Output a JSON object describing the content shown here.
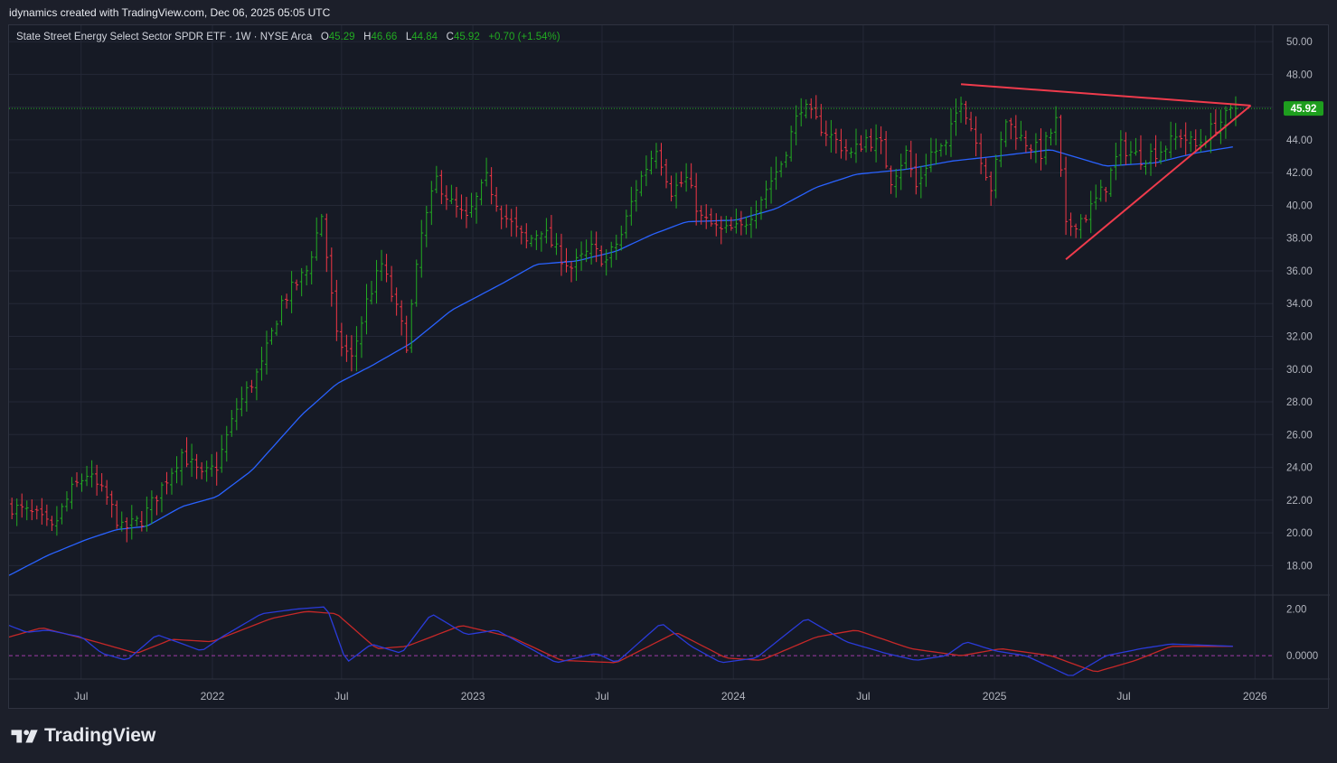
{
  "caption": "idynamics created with TradingView.com, Dec 06, 2025 05:05 UTC",
  "legend": {
    "symbol": "State Street Energy Select Sector SPDR ETF · 1W · NYSE Arca",
    "o_label": "O",
    "o": "45.29",
    "h_label": "H",
    "h": "46.66",
    "l_label": "L",
    "l": "44.84",
    "c_label": "C",
    "c": "45.92",
    "change": "+0.70 (+1.54%)"
  },
  "brand": "TradingView",
  "colors": {
    "up": "#22ab22",
    "down": "#f23645",
    "ma": "#2962ff",
    "trend": "#ef3b4c",
    "osc_fast": "#2a3bd9",
    "osc_slow": "#c62828",
    "price_tag": "#1e9e1e"
  },
  "chart_data": {
    "type": "ohlc",
    "interval": "1W",
    "price_axis": {
      "ylim": [
        16.2,
        51.0
      ],
      "ticks": [
        "50.00",
        "48.00",
        "46.00",
        "44.00",
        "42.00",
        "40.00",
        "38.00",
        "36.00",
        "34.00",
        "32.00",
        "30.00",
        "28.00",
        "26.00",
        "24.00",
        "22.00",
        "20.00",
        "18.00"
      ],
      "last_price": "45.92"
    },
    "indicator_axis": {
      "ylim": [
        -1.0,
        2.6
      ],
      "ticks": [
        "2.00",
        "0.0000"
      ]
    },
    "time_axis": {
      "range": [
        "2021-03-22",
        "2026-01-26"
      ],
      "labels": [
        {
          "text": "Jul",
          "date": "2021-07-01"
        },
        {
          "text": "2022",
          "date": "2022-01-01"
        },
        {
          "text": "Jul",
          "date": "2022-07-01"
        },
        {
          "text": "2023",
          "date": "2023-01-01"
        },
        {
          "text": "Jul",
          "date": "2023-07-01"
        },
        {
          "text": "2024",
          "date": "2024-01-01"
        },
        {
          "text": "Jul",
          "date": "2024-07-01"
        },
        {
          "text": "2025",
          "date": "2025-01-01"
        },
        {
          "text": "Jul",
          "date": "2025-07-01"
        },
        {
          "text": "2026",
          "date": "2026-01-01"
        }
      ]
    },
    "price_keypoints": [
      [
        "2021-03-26",
        21.6
      ],
      [
        "2021-04-30",
        21.0
      ],
      [
        "2021-05-21",
        20.2
      ],
      [
        "2021-06-18",
        22.6
      ],
      [
        "2021-07-09",
        23.6
      ],
      [
        "2021-08-06",
        22.1
      ],
      [
        "2021-08-27",
        20.2
      ],
      [
        "2021-09-24",
        20.8
      ],
      [
        "2021-10-22",
        22.8
      ],
      [
        "2021-11-19",
        24.9
      ],
      [
        "2021-12-17",
        23.4
      ],
      [
        "2022-01-07",
        24.1
      ],
      [
        "2022-02-04",
        27.6
      ],
      [
        "2022-03-11",
        30.2
      ],
      [
        "2022-04-08",
        34.1
      ],
      [
        "2022-05-13",
        36.0
      ],
      [
        "2022-06-03",
        39.4
      ],
      [
        "2022-06-24",
        31.9
      ],
      [
        "2022-07-15",
        30.6
      ],
      [
        "2022-08-05",
        34.1
      ],
      [
        "2022-08-26",
        36.4
      ],
      [
        "2022-09-16",
        33.6
      ],
      [
        "2022-09-30",
        31.6
      ],
      [
        "2022-10-21",
        38.2
      ],
      [
        "2022-11-11",
        41.6
      ],
      [
        "2022-12-02",
        40.1
      ],
      [
        "2022-12-23",
        39.1
      ],
      [
        "2023-01-20",
        41.6
      ],
      [
        "2023-02-10",
        39.6
      ],
      [
        "2023-03-17",
        37.7
      ],
      [
        "2023-04-07",
        38.6
      ],
      [
        "2023-04-28",
        37.2
      ],
      [
        "2023-05-19",
        36.2
      ],
      [
        "2023-06-16",
        37.3
      ],
      [
        "2023-07-07",
        36.6
      ],
      [
        "2023-07-28",
        38.2
      ],
      [
        "2023-08-18",
        41.1
      ],
      [
        "2023-09-15",
        43.6
      ],
      [
        "2023-10-06",
        40.9
      ],
      [
        "2023-10-27",
        41.6
      ],
      [
        "2023-11-17",
        39.2
      ],
      [
        "2023-12-15",
        38.4
      ],
      [
        "2024-01-12",
        38.6
      ],
      [
        "2024-02-09",
        40.5
      ],
      [
        "2024-03-08",
        42.6
      ],
      [
        "2024-04-05",
        46.1
      ],
      [
        "2024-04-26",
        45.1
      ],
      [
        "2024-05-17",
        44.2
      ],
      [
        "2024-06-14",
        43.1
      ],
      [
        "2024-07-05",
        44.1
      ],
      [
        "2024-07-26",
        43.6
      ],
      [
        "2024-08-09",
        41.6
      ],
      [
        "2024-08-30",
        43.2
      ],
      [
        "2024-09-13",
        41.1
      ],
      [
        "2024-10-04",
        43.2
      ],
      [
        "2024-10-25",
        43.6
      ],
      [
        "2024-11-15",
        46.6
      ],
      [
        "2024-12-06",
        43.9
      ],
      [
        "2024-12-27",
        41.1
      ],
      [
        "2025-01-17",
        45.2
      ],
      [
        "2025-02-07",
        44.1
      ],
      [
        "2025-03-07",
        43.2
      ],
      [
        "2025-03-28",
        45.1
      ],
      [
        "2025-04-11",
        38.6
      ],
      [
        "2025-05-09",
        39.4
      ],
      [
        "2025-06-06",
        41.2
      ],
      [
        "2025-06-27",
        43.6
      ],
      [
        "2025-07-25",
        42.9
      ],
      [
        "2025-08-22",
        43.4
      ],
      [
        "2025-09-19",
        44.3
      ],
      [
        "2025-10-10",
        43.6
      ],
      [
        "2025-10-31",
        44.6
      ],
      [
        "2025-12-05",
        45.92
      ]
    ],
    "ma_keypoints": [
      [
        "2021-03-22",
        17.4
      ],
      [
        "2021-05-14",
        18.6
      ],
      [
        "2021-07-09",
        19.6
      ],
      [
        "2021-08-20",
        20.2
      ],
      [
        "2021-10-01",
        20.4
      ],
      [
        "2021-11-19",
        21.6
      ],
      [
        "2022-01-07",
        22.2
      ],
      [
        "2022-02-25",
        23.8
      ],
      [
        "2022-05-06",
        27.2
      ],
      [
        "2022-06-24",
        29.1
      ],
      [
        "2022-08-12",
        30.2
      ],
      [
        "2022-10-07",
        31.6
      ],
      [
        "2022-12-02",
        33.6
      ],
      [
        "2023-02-10",
        35.2
      ],
      [
        "2023-03-31",
        36.4
      ],
      [
        "2023-05-26",
        36.6
      ],
      [
        "2023-07-21",
        37.2
      ],
      [
        "2023-09-08",
        38.2
      ],
      [
        "2023-10-27",
        39.0
      ],
      [
        "2024-01-05",
        39.1
      ],
      [
        "2024-03-01",
        39.8
      ],
      [
        "2024-04-26",
        41.1
      ],
      [
        "2024-06-21",
        41.9
      ],
      [
        "2024-08-30",
        42.2
      ],
      [
        "2024-11-01",
        42.7
      ],
      [
        "2025-01-03",
        43.0
      ],
      [
        "2025-03-21",
        43.4
      ],
      [
        "2025-06-06",
        42.4
      ],
      [
        "2025-08-15",
        42.6
      ],
      [
        "2025-10-10",
        43.2
      ],
      [
        "2025-12-05",
        43.6
      ]
    ],
    "trendlines": [
      {
        "name": "resistance",
        "from": [
          "2024-11-15",
          47.4
        ],
        "to": [
          "2025-12-26",
          46.1
        ]
      },
      {
        "name": "support",
        "from": [
          "2025-04-11",
          36.7
        ],
        "to": [
          "2025-12-26",
          46.1
        ]
      }
    ],
    "oscillator": {
      "zero_line": 0,
      "fast_keypoints": [
        [
          "2021-03-22",
          1.3
        ],
        [
          "2021-04-16",
          1.0
        ],
        [
          "2021-05-14",
          1.1
        ],
        [
          "2021-07-02",
          0.8
        ],
        [
          "2021-07-30",
          0.1
        ],
        [
          "2021-09-03",
          -0.2
        ],
        [
          "2021-10-15",
          0.9
        ],
        [
          "2021-11-12",
          0.6
        ],
        [
          "2021-12-17",
          0.2
        ],
        [
          "2022-01-14",
          0.8
        ],
        [
          "2022-03-11",
          1.8
        ],
        [
          "2022-04-29",
          2.0
        ],
        [
          "2022-06-10",
          2.1
        ],
        [
          "2022-07-08",
          -0.3
        ],
        [
          "2022-08-12",
          0.5
        ],
        [
          "2022-09-23",
          0.1
        ],
        [
          "2022-11-04",
          1.8
        ],
        [
          "2022-12-23",
          0.9
        ],
        [
          "2023-02-03",
          1.1
        ],
        [
          "2023-03-17",
          0.4
        ],
        [
          "2023-04-28",
          -0.3
        ],
        [
          "2023-06-23",
          0.1
        ],
        [
          "2023-07-21",
          -0.3
        ],
        [
          "2023-09-22",
          1.4
        ],
        [
          "2023-11-03",
          0.4
        ],
        [
          "2023-12-15",
          -0.3
        ],
        [
          "2024-02-02",
          -0.1
        ],
        [
          "2024-04-12",
          1.6
        ],
        [
          "2024-06-07",
          0.6
        ],
        [
          "2024-08-02",
          0.1
        ],
        [
          "2024-09-13",
          -0.2
        ],
        [
          "2024-10-25",
          0.0
        ],
        [
          "2024-11-22",
          0.6
        ],
        [
          "2025-01-03",
          0.2
        ],
        [
          "2025-02-14",
          0.0
        ],
        [
          "2025-04-18",
          -0.9
        ],
        [
          "2025-06-06",
          0.0
        ],
        [
          "2025-07-25",
          0.3
        ],
        [
          "2025-09-05",
          0.5
        ],
        [
          "2025-12-05",
          0.4
        ]
      ],
      "slow_keypoints": [
        [
          "2021-03-22",
          0.8
        ],
        [
          "2021-05-07",
          1.2
        ],
        [
          "2021-07-09",
          0.7
        ],
        [
          "2021-09-17",
          0.1
        ],
        [
          "2021-11-05",
          0.7
        ],
        [
          "2021-12-31",
          0.6
        ],
        [
          "2022-03-25",
          1.6
        ],
        [
          "2022-05-13",
          1.9
        ],
        [
          "2022-06-24",
          1.8
        ],
        [
          "2022-08-19",
          0.3
        ],
        [
          "2022-09-30",
          0.4
        ],
        [
          "2022-12-16",
          1.3
        ],
        [
          "2023-02-24",
          0.8
        ],
        [
          "2023-05-05",
          -0.2
        ],
        [
          "2023-07-21",
          -0.3
        ],
        [
          "2023-10-13",
          1.0
        ],
        [
          "2023-12-22",
          -0.1
        ],
        [
          "2024-02-09",
          -0.2
        ],
        [
          "2024-04-26",
          0.8
        ],
        [
          "2024-06-21",
          1.1
        ],
        [
          "2024-09-06",
          0.3
        ],
        [
          "2024-11-15",
          0.0
        ],
        [
          "2025-01-10",
          0.3
        ],
        [
          "2025-03-21",
          0.0
        ],
        [
          "2025-05-23",
          -0.7
        ],
        [
          "2025-07-18",
          -0.2
        ],
        [
          "2025-09-05",
          0.4
        ],
        [
          "2025-12-05",
          0.4
        ]
      ]
    }
  }
}
